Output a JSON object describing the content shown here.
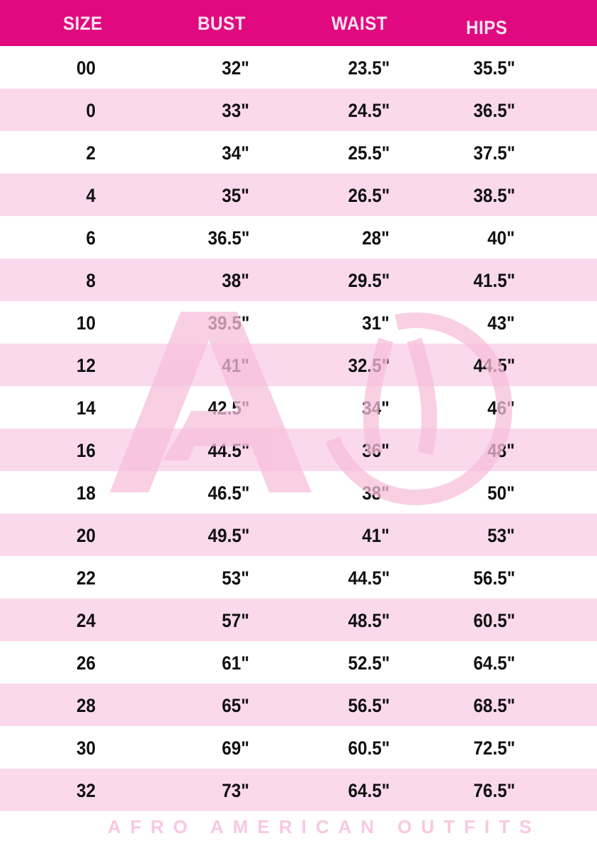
{
  "colors": {
    "header_bg": "#e0097f",
    "header_text": "#fce4f0",
    "stripe": "#fbd9ec",
    "watermark": "#f7bfdc"
  },
  "headers": [
    "SIZE",
    "BUST",
    "WAIST",
    "HIPS"
  ],
  "rows": [
    [
      "00",
      "32\"",
      "23.5\"",
      "35.5\""
    ],
    [
      "0",
      "33\"",
      "24.5\"",
      "36.5\""
    ],
    [
      "2",
      "34\"",
      "25.5\"",
      "37.5\""
    ],
    [
      "4",
      "35\"",
      "26.5\"",
      "38.5\""
    ],
    [
      "6",
      "36.5\"",
      "28\"",
      "40\""
    ],
    [
      "8",
      "38\"",
      "29.5\"",
      "41.5\""
    ],
    [
      "10",
      "39.5\"",
      "31\"",
      "43\""
    ],
    [
      "12",
      "41\"",
      "32.5\"",
      "44.5\""
    ],
    [
      "14",
      "42.5\"",
      "34\"",
      "46\""
    ],
    [
      "16",
      "44.5\"",
      "36\"",
      "48\""
    ],
    [
      "18",
      "46.5\"",
      "38\"",
      "50\""
    ],
    [
      "20",
      "49.5\"",
      "41\"",
      "53\""
    ],
    [
      "22",
      "53\"",
      "44.5\"",
      "56.5\""
    ],
    [
      "24",
      "57\"",
      "48.5\"",
      "60.5\""
    ],
    [
      "26",
      "61\"",
      "52.5\"",
      "64.5\""
    ],
    [
      "28",
      "65\"",
      "56.5\"",
      "68.5\""
    ],
    [
      "30",
      "69\"",
      "60.5\"",
      "72.5\""
    ],
    [
      "32",
      "73\"",
      "64.5\"",
      "76.5\""
    ]
  ],
  "watermark": {
    "text": "AFRO AMERICAN OUTFITS"
  }
}
